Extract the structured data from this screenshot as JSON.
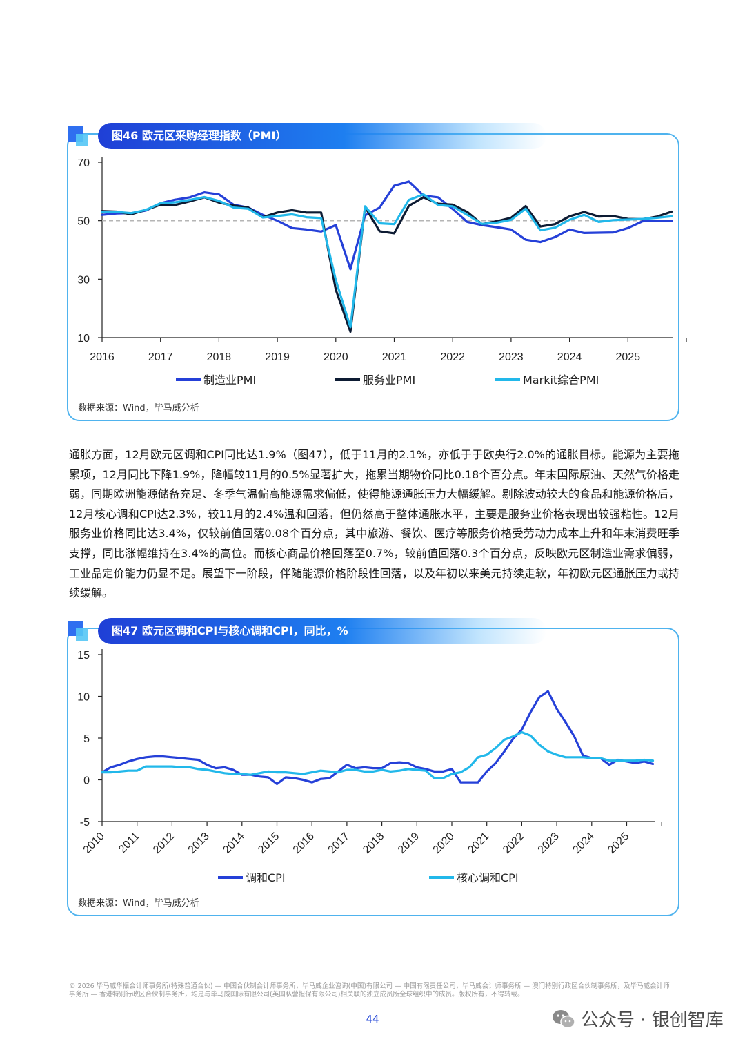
{
  "figure1": {
    "title": "图46 欧元区采购经理指数（PMI）",
    "source": "数据来源：Wind，毕马威分析"
  },
  "figure2": {
    "title": "图47 欧元区调和CPI与核心调和CPI，同比，%",
    "source": "数据来源：Wind，毕马威分析"
  },
  "paragraph": "通胀方面，12月欧元区调和CPI同比达1.9%（图47），低于11月的2.1%，亦低于于欧央行2.0%的通胀目标。能源为主要拖累项，12月同比下降1.9%，降幅较11月的0.5%显著扩大，拖累当期物价同比0.18个百分点。年末国际原油、天然气价格走弱，同期欧洲能源储备充足、冬季气温偏高能源需求偏低，使得能源通胀压力大幅缓解。剔除波动较大的食品和能源价格后，12月核心调和CPI达2.3%，较11月的2.4%温和回落，但仍然高于整体通胀水平，主要是服务业价格表现出较强粘性。12月服务业价格同比达3.4%，仅较前值回落0.08个百分点，其中旅游、餐饮、医疗等服务价格受劳动力成本上升和年末消费旺季支撑，同比涨幅维持在3.4%的高位。而核心商品价格回落至0.7%，较前值回落0.3个百分点，反映欧元区制造业需求偏弱，工业品定价能力仍显不足。展望下一阶段，伴随能源价格阶段性回落，以及年初以来美元持续走软，年初欧元区通胀压力或持续缓解。",
  "footer": "© 2026 毕马威华振会计师事务所(特殊普通合伙) — 中国合伙制会计师事务所，毕马威企业咨询(中国)有限公司 — 中国有限责任公司，毕马威会计师事务所 — 澳门特别行政区合伙制事务所，及毕马威会计师事务所 — 香港特别行政区合伙制事务所，均是与毕马威国际有限公司(英国私营担保有限公司)相关联的独立成员所全球组织中的成员。版权所有，不得转载。",
  "page_number": "44",
  "watermark": "公众号 · 银创智库",
  "colors": {
    "blue": "#2540d8",
    "navy": "#0d1b33",
    "cyan": "#22b8ea",
    "accent": "#1e7ff0"
  },
  "chart_data": [
    {
      "type": "line",
      "title": "图46 欧元区采购经理指数（PMI）",
      "x_tick_labels": [
        "2016",
        "2017",
        "2018",
        "2019",
        "2020",
        "2021",
        "2022",
        "2023",
        "2024",
        "2025"
      ],
      "ylim": [
        10,
        70
      ],
      "y_ticks": [
        10,
        30,
        50,
        70
      ],
      "reference_line": 50,
      "x_start": 2016.0,
      "x_step": 0.25,
      "series": [
        {
          "name": "制造业PMI",
          "color": "#2540d8",
          "values": [
            52.0,
            52.5,
            52.6,
            53.5,
            56.0,
            57.2,
            58.0,
            59.7,
            59.0,
            55.5,
            54.5,
            52.0,
            50.0,
            47.5,
            47.0,
            46.3,
            48.5,
            33.4,
            51.8,
            54.5,
            62.0,
            63.4,
            58.6,
            58.0,
            54.0,
            49.6,
            48.5,
            47.8,
            47.0,
            43.5,
            42.7,
            44.4,
            47.0,
            45.8,
            45.9,
            46.0,
            47.5,
            49.8,
            50.0,
            49.9
          ]
        },
        {
          "name": "服务业PMI",
          "color": "#0d1b33",
          "values": [
            53.3,
            53.1,
            52.2,
            53.7,
            55.5,
            55.4,
            56.6,
            58.0,
            56.2,
            55.2,
            54.5,
            51.2,
            52.8,
            53.6,
            52.8,
            52.8,
            26.4,
            12.0,
            54.7,
            46.4,
            45.7,
            55.1,
            58.0,
            55.8,
            55.5,
            53.0,
            48.8,
            49.8,
            51.0,
            55.0,
            48.0,
            48.8,
            51.5,
            53.0,
            51.4,
            51.6,
            50.6,
            50.5,
            51.4,
            53.1
          ]
        },
        {
          "name": "Markit综合PMI",
          "color": "#22b8ea",
          "values": [
            53.0,
            53.0,
            52.6,
            53.7,
            56.0,
            56.3,
            57.1,
            58.1,
            56.8,
            54.5,
            54.1,
            51.1,
            51.6,
            52.2,
            51.2,
            50.9,
            29.7,
            13.6,
            54.9,
            49.1,
            48.8,
            57.1,
            59.0,
            55.4,
            54.9,
            52.0,
            48.9,
            49.3,
            50.3,
            54.1,
            46.7,
            47.6,
            50.3,
            52.0,
            49.6,
            50.2,
            50.4,
            50.6,
            51.0,
            51.5
          ]
        }
      ]
    },
    {
      "type": "line",
      "title": "图47 欧元区调和CPI与核心调和CPI，同比，%",
      "x_tick_labels": [
        "2010",
        "2011",
        "2012",
        "2013",
        "2014",
        "2015",
        "2016",
        "2017",
        "2018",
        "2019",
        "2020",
        "2021",
        "2022",
        "2023",
        "2024",
        "2025"
      ],
      "ylim": [
        -5,
        15
      ],
      "y_ticks": [
        -5,
        0,
        5,
        10,
        15
      ],
      "x_start": 2010.0,
      "x_step": 0.25,
      "series": [
        {
          "name": "调和CPI",
          "color": "#2540d8",
          "values": [
            0.9,
            1.5,
            1.8,
            2.2,
            2.5,
            2.7,
            2.8,
            2.8,
            2.7,
            2.6,
            2.5,
            2.4,
            1.8,
            1.4,
            1.5,
            1.2,
            0.6,
            0.6,
            0.4,
            0.3,
            -0.5,
            0.3,
            0.2,
            0.0,
            -0.3,
            0.1,
            0.2,
            1.0,
            1.8,
            1.4,
            1.5,
            1.4,
            1.4,
            2.0,
            2.1,
            2.0,
            1.5,
            1.3,
            1.0,
            1.0,
            1.3,
            -0.3,
            -0.3,
            -0.3,
            1.0,
            2.0,
            3.4,
            4.9,
            6.0,
            8.1,
            9.9,
            10.6,
            8.5,
            6.9,
            5.2,
            2.9,
            2.6,
            2.6,
            1.8,
            2.4,
            2.2,
            2.0,
            2.2,
            1.9
          ]
        },
        {
          "name": "核心调和CPI",
          "color": "#22b8ea",
          "values": [
            0.9,
            0.9,
            1.0,
            1.1,
            1.1,
            1.6,
            1.6,
            1.6,
            1.6,
            1.5,
            1.5,
            1.3,
            1.2,
            1.0,
            0.8,
            0.7,
            0.7,
            0.6,
            0.8,
            1.0,
            0.9,
            0.9,
            0.8,
            0.7,
            0.9,
            1.1,
            1.0,
            0.9,
            1.2,
            1.2,
            1.0,
            1.0,
            1.2,
            1.0,
            1.1,
            1.3,
            1.2,
            1.1,
            0.2,
            0.2,
            0.7,
            0.9,
            1.5,
            2.7,
            3.0,
            3.8,
            4.8,
            5.2,
            5.7,
            5.3,
            4.2,
            3.4,
            3.0,
            2.7,
            2.7,
            2.7,
            2.6,
            2.6,
            2.3,
            2.3,
            2.3,
            2.3,
            2.4,
            2.3
          ]
        }
      ]
    }
  ]
}
